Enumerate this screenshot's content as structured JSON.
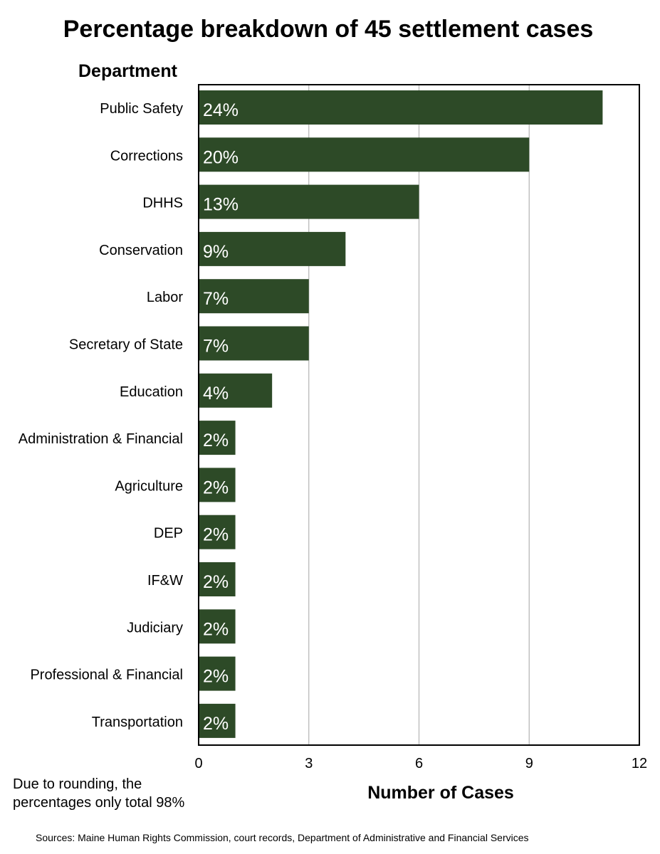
{
  "colors": {
    "bar": "#2d4a27",
    "bar_label": "#ffffff",
    "grid": "#b3b3b3",
    "frame": "#000000"
  },
  "chart_data": {
    "type": "bar",
    "orientation": "horizontal",
    "title": "Percentage breakdown of 45 settlement cases",
    "ylabel": "Department",
    "xlabel": "Number of Cases",
    "xlim": [
      0,
      12
    ],
    "xticks": [
      0,
      3,
      6,
      9,
      12
    ],
    "grid": "vertical",
    "categories": [
      "Public Safety",
      "Corrections",
      "DHHS",
      "Conservation",
      "Labor",
      "Secretary of State",
      "Education",
      "Administration & Financial",
      "Agriculture",
      "DEP",
      "IF&W",
      "Judiciary",
      "Professional & Financial",
      "Transportation"
    ],
    "values": [
      11,
      9,
      6,
      4,
      3,
      3,
      2,
      1,
      1,
      1,
      1,
      1,
      1,
      1
    ],
    "data_labels": [
      "24%",
      "20%",
      "13%",
      "9%",
      "7%",
      "7%",
      "4%",
      "2%",
      "2%",
      "2%",
      "2%",
      "2%",
      "2%",
      "2%"
    ]
  },
  "notes": {
    "rounding_line1": "Due to rounding, the",
    "rounding_line2": "percentages only total 98%"
  },
  "source": "Sources: Maine Human Rights Commission, court records, Department of Administrative and Financial Services"
}
